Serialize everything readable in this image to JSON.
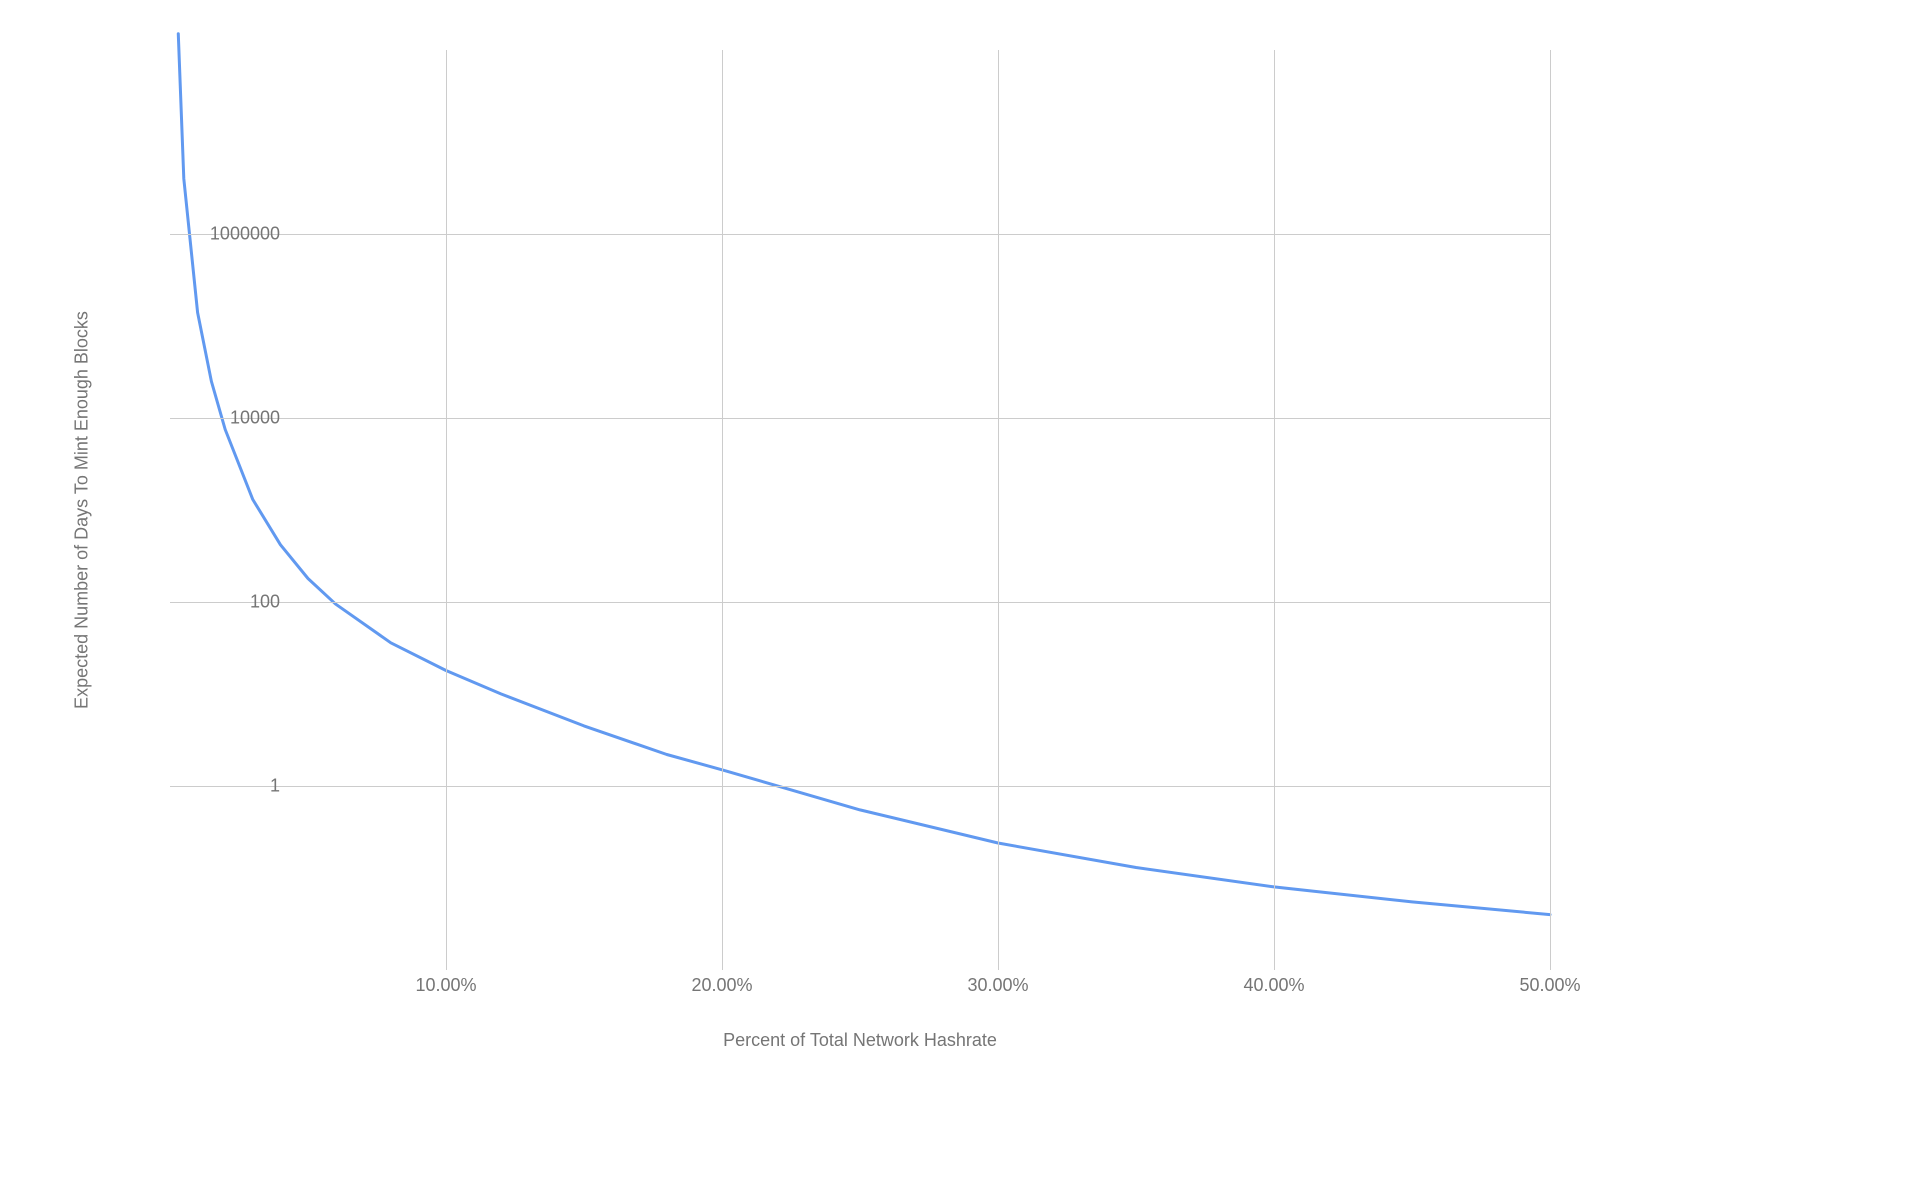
{
  "chart": {
    "type": "line",
    "background_color": "#ffffff",
    "grid_color": "#cccccc",
    "axis_label_color": "#757575",
    "tick_label_color": "#757575",
    "line_color": "#6199f0",
    "line_width": 3,
    "tick_fontsize": 18,
    "axis_title_fontsize": 18,
    "x_axis": {
      "title": "Percent of Total Network Hashrate",
      "min": 0,
      "max": 50,
      "ticks": [
        10,
        20,
        30,
        40,
        50
      ],
      "tick_labels": [
        "10.00%",
        "20.00%",
        "30.00%",
        "40.00%",
        "50.00%"
      ]
    },
    "y_axis": {
      "title": "Expected Number of Days To Mint Enough Blocks",
      "scale": "log",
      "min_exp": -2,
      "max_exp": 8,
      "ticks_exp": [
        0,
        2,
        4,
        6
      ],
      "tick_labels": [
        "1",
        "100",
        "10000",
        "1000000"
      ]
    },
    "series": {
      "x": [
        0.3,
        0.5,
        1,
        1.5,
        2,
        3,
        4,
        5,
        6,
        8,
        10,
        12,
        15,
        18,
        20,
        25,
        30,
        35,
        40,
        45,
        50
      ],
      "y": [
        150000000,
        4000000,
        140000,
        25000,
        7500,
        1300,
        420,
        180,
        95,
        36,
        18,
        10,
        4.5,
        2.2,
        1.5,
        0.55,
        0.24,
        0.13,
        0.08,
        0.055,
        0.04
      ]
    }
  }
}
